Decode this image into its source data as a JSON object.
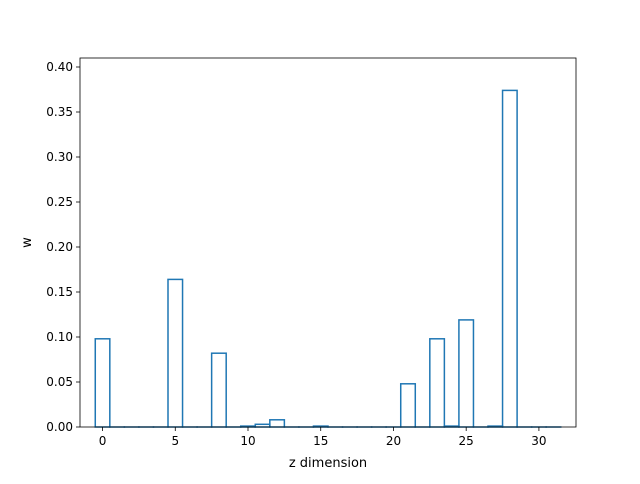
{
  "chart_data": {
    "type": "bar",
    "style": "step-outline",
    "xlabel": "z dimension",
    "ylabel": "w",
    "xlim": [
      -1.55,
      32.55
    ],
    "ylim": [
      0,
      0.41
    ],
    "xticks": [
      0,
      5,
      10,
      15,
      20,
      25,
      30
    ],
    "xtick_labels": [
      "0",
      "5",
      "10",
      "15",
      "20",
      "25",
      "30"
    ],
    "yticks": [
      0.0,
      0.05,
      0.1,
      0.15,
      0.2,
      0.25,
      0.3,
      0.35,
      0.4
    ],
    "ytick_labels": [
      "0.00",
      "0.05",
      "0.10",
      "0.15",
      "0.20",
      "0.25",
      "0.30",
      "0.35",
      "0.40"
    ],
    "x": [
      0,
      1,
      2,
      3,
      4,
      5,
      6,
      7,
      8,
      9,
      10,
      11,
      12,
      13,
      14,
      15,
      16,
      17,
      18,
      19,
      20,
      21,
      22,
      23,
      24,
      25,
      26,
      27,
      28,
      29,
      30,
      31
    ],
    "values": [
      0.098,
      0,
      0,
      0,
      0,
      0.164,
      0,
      0,
      0.082,
      0,
      0.001,
      0.003,
      0.008,
      0,
      0,
      0.001,
      0,
      0,
      0,
      0,
      0,
      0.048,
      0,
      0.098,
      0.001,
      0.119,
      0,
      0.001,
      0.374,
      0,
      0,
      0
    ],
    "color": "#1f77b4",
    "grid": false,
    "legend": "none"
  }
}
